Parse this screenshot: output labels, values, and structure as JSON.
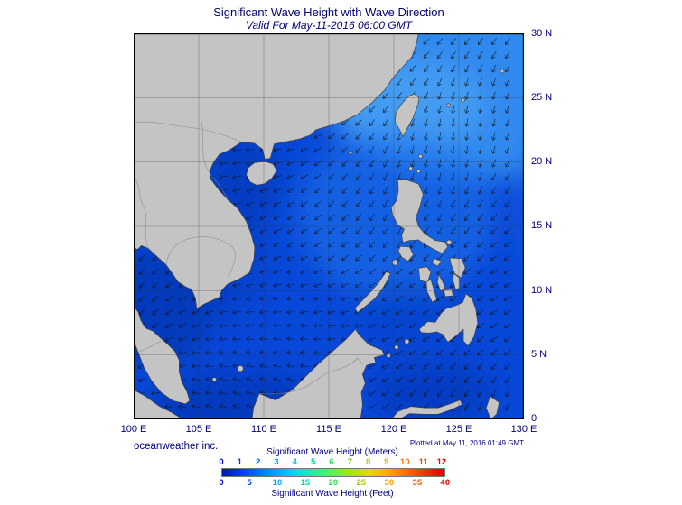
{
  "header": {
    "title": "Significant Wave Height with Wave Direction",
    "subtitle": "Valid For May-11-2016 06:00 GMT"
  },
  "map": {
    "lat_labels": [
      "30 N",
      "25 N",
      "20 N",
      "15 N",
      "10 N",
      "5 N",
      "0"
    ],
    "lon_labels": [
      "100 E",
      "105 E",
      "110 E",
      "115 E",
      "120 E",
      "125 E",
      "130 E"
    ]
  },
  "footer": {
    "credit": "oceanweather inc.",
    "plotted_note": "Plotted at May 11, 2016 01:49 GMT"
  },
  "legend": {
    "meters_label": "Significant Wave Height (Meters)",
    "feet_label": "Significant Wave Height (Feet)",
    "max_meters": 12.2,
    "meters_ticks": [
      {
        "label": "0",
        "meters": 0,
        "color": "#0000C0"
      },
      {
        "label": "1",
        "meters": 1,
        "color": "#0030F0"
      },
      {
        "label": "2",
        "meters": 2,
        "color": "#0064FF"
      },
      {
        "label": "3",
        "meters": 3,
        "color": "#00A8FF"
      },
      {
        "label": "4",
        "meters": 4,
        "color": "#00C8E8"
      },
      {
        "label": "5",
        "meters": 5,
        "color": "#00D8A0"
      },
      {
        "label": "6",
        "meters": 6,
        "color": "#30D860"
      },
      {
        "label": "7",
        "meters": 7,
        "color": "#7CD000"
      },
      {
        "label": "8",
        "meters": 8,
        "color": "#C0C800"
      },
      {
        "label": "9",
        "meters": 9,
        "color": "#F0A800"
      },
      {
        "label": "10",
        "meters": 10,
        "color": "#F07800"
      },
      {
        "label": "11",
        "meters": 11,
        "color": "#E84400"
      },
      {
        "label": "12",
        "meters": 12,
        "color": "#E00000"
      }
    ],
    "feet_ticks": [
      {
        "label": "0",
        "meters": 0,
        "color": "#0000C0"
      },
      {
        "label": "5",
        "meters": 1.524,
        "color": "#0038F4"
      },
      {
        "label": "10",
        "meters": 3.048,
        "color": "#00A8FF"
      },
      {
        "label": "15",
        "meters": 4.572,
        "color": "#00D0C8"
      },
      {
        "label": "20",
        "meters": 6.096,
        "color": "#38D858"
      },
      {
        "label": "25",
        "meters": 7.62,
        "color": "#A0CC00"
      },
      {
        "label": "30",
        "meters": 9.144,
        "color": "#F0A000"
      },
      {
        "label": "35",
        "meters": 10.668,
        "color": "#EC5C00"
      },
      {
        "label": "40",
        "meters": 12.192,
        "color": "#E00000"
      }
    ],
    "gradient": [
      "#0018B0",
      "#0038F8",
      "#0070FF",
      "#00ACFF",
      "#00E0E8",
      "#20F09C",
      "#60F050",
      "#A8E800",
      "#E8D800",
      "#FCA800",
      "#FC6800",
      "#F03000",
      "#E00000"
    ]
  },
  "colors": {
    "ocean_base": "#0848D8",
    "land": "#C4C4C4",
    "label_navy": "#00007E"
  }
}
